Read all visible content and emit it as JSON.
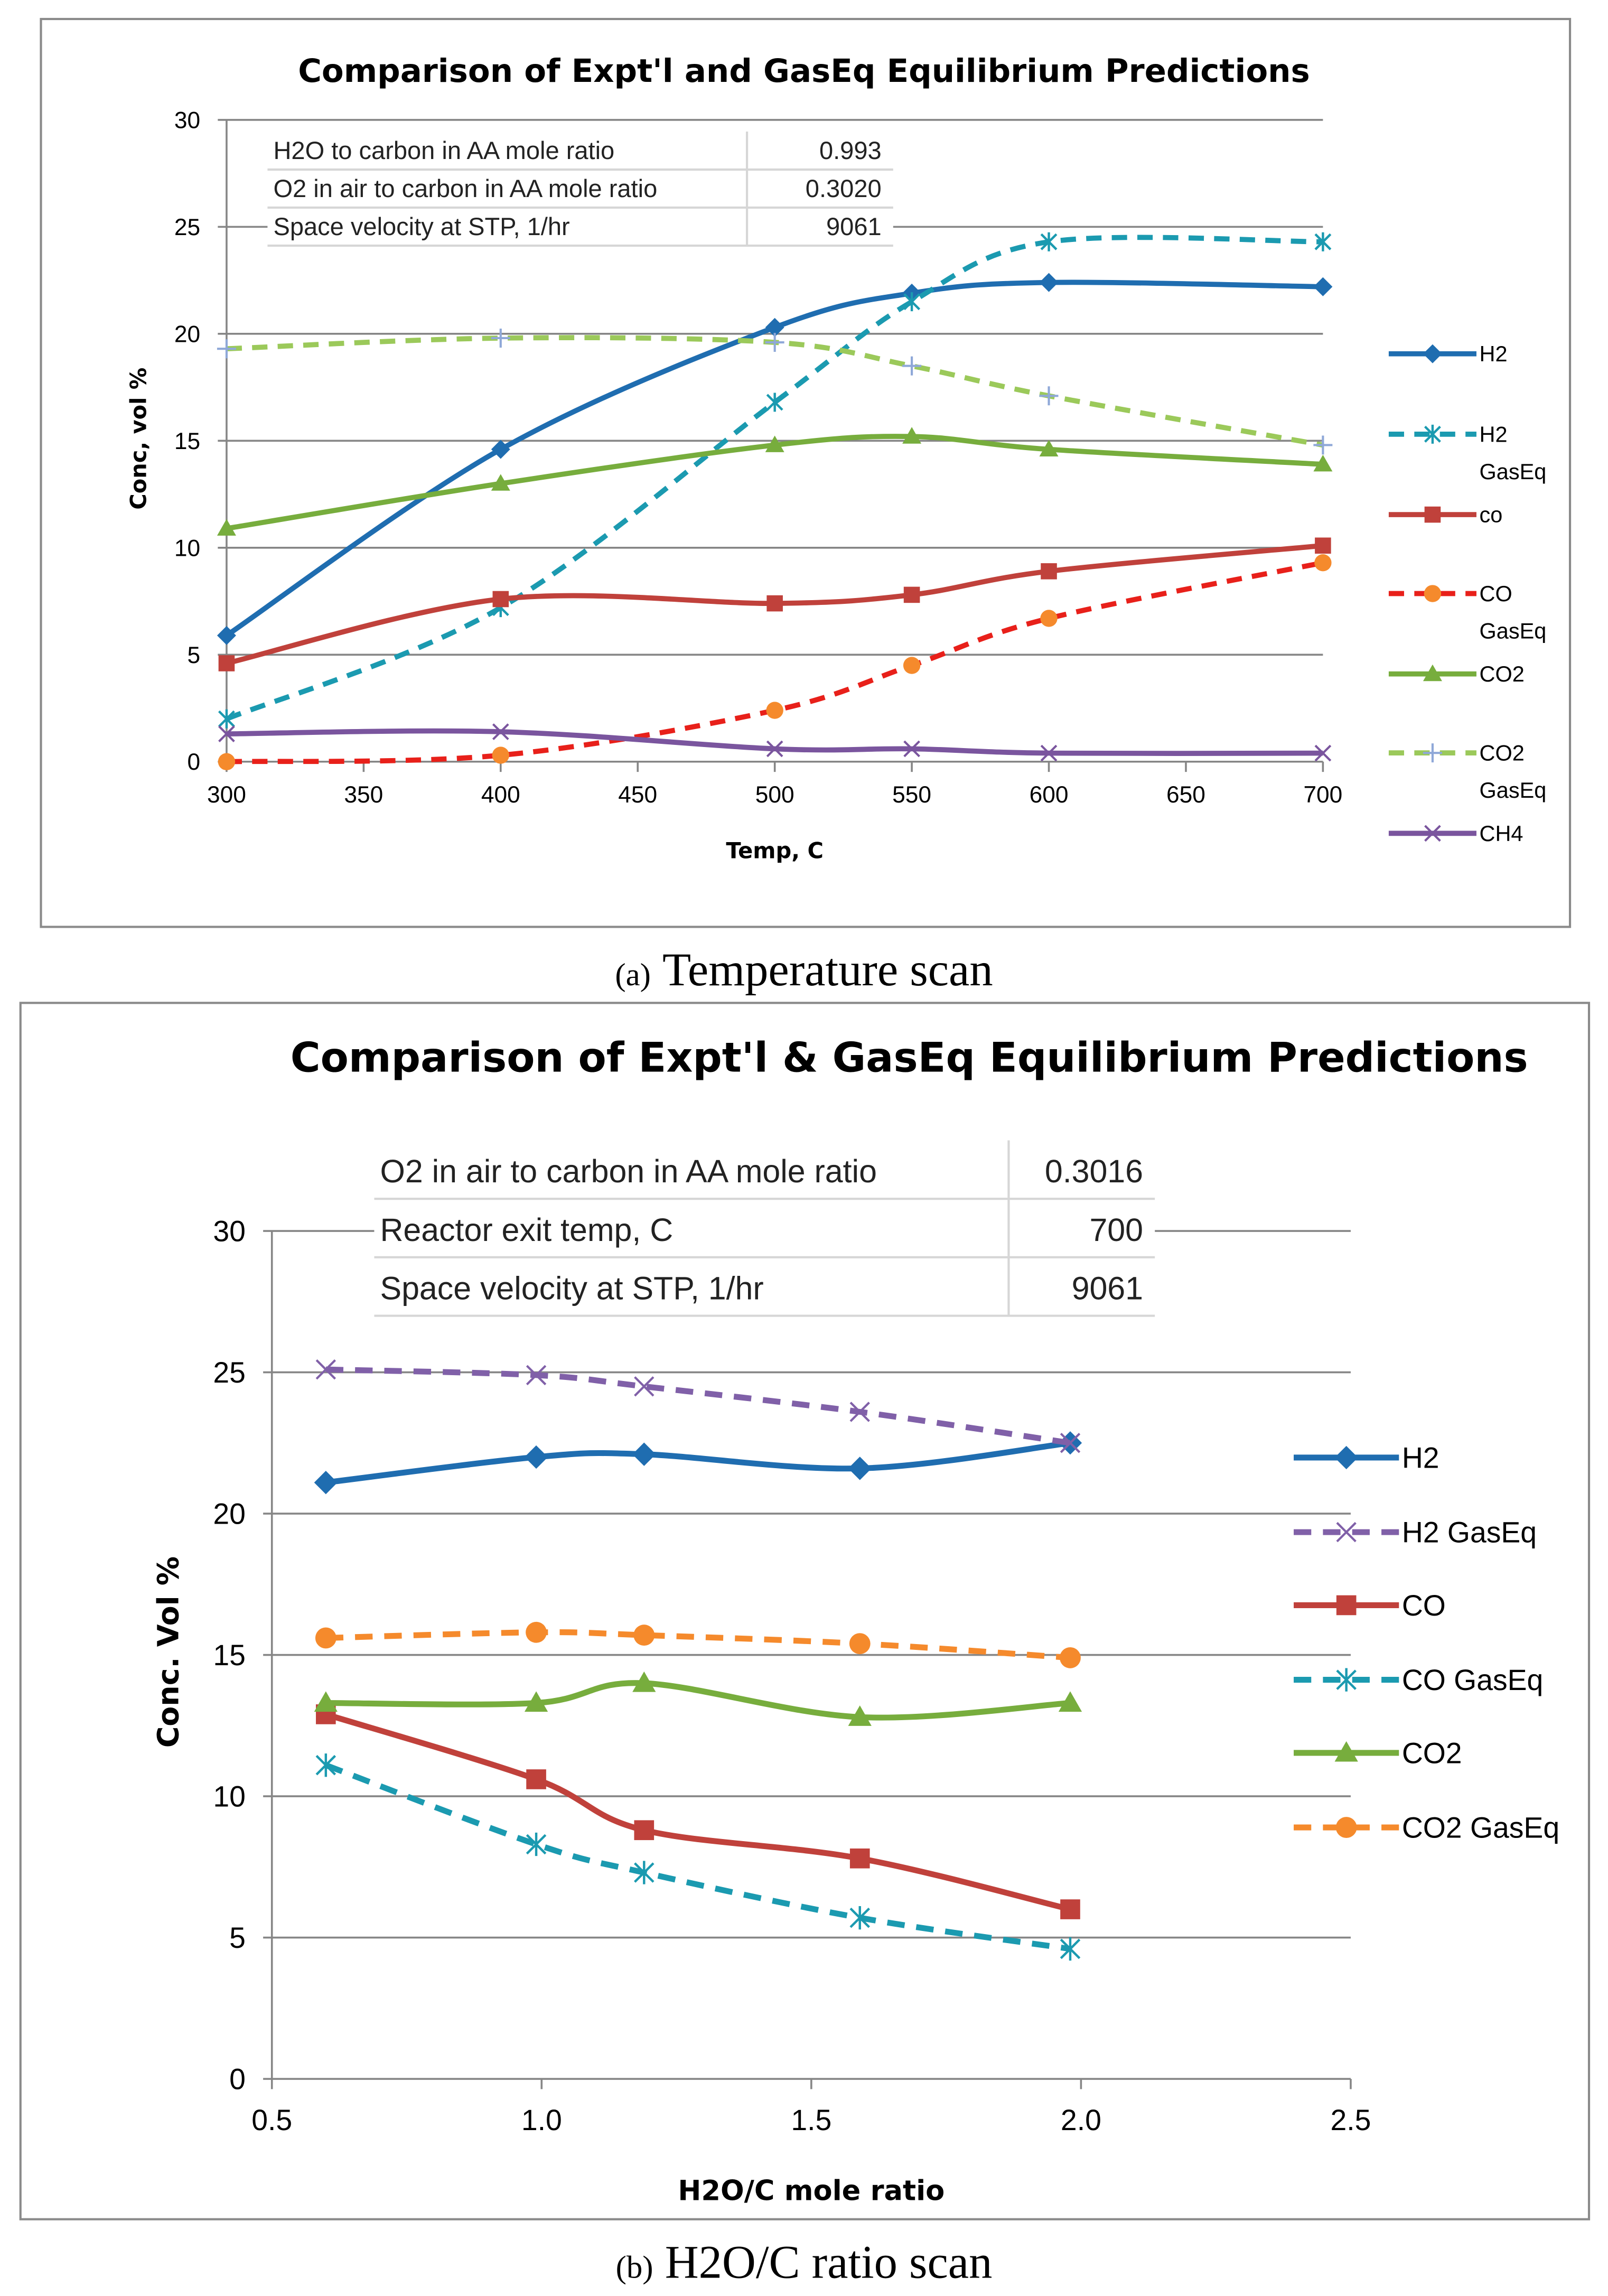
{
  "captions": [
    {
      "label": "(a)",
      "text": "Temperature scan"
    },
    {
      "label": "(b)",
      "text": "H2O/C ratio scan"
    }
  ],
  "chart_data": [
    {
      "type": "line",
      "title": "Comparison of Expt'l and GasEq Equilibrium Predictions",
      "xlabel": "Temp, C",
      "ylabel": "Conc, vol %",
      "xlim": [
        300,
        700
      ],
      "ylim": [
        0,
        30
      ],
      "xticks": [
        "300",
        "350",
        "400",
        "450",
        "500",
        "550",
        "600",
        "650",
        "700"
      ],
      "xtick_values": [
        300,
        350,
        400,
        450,
        500,
        550,
        600,
        650,
        700
      ],
      "yticks": [
        "0",
        "5",
        "10",
        "15",
        "20",
        "25",
        "30"
      ],
      "ytick_values": [
        0,
        5,
        10,
        15,
        20,
        25,
        30
      ],
      "grid": true,
      "legend_placement": "right",
      "x": [
        300,
        400,
        500,
        550,
        600,
        700
      ],
      "series": [
        {
          "name": "H2",
          "values": [
            5.9,
            14.6,
            20.3,
            21.9,
            22.4,
            22.2
          ],
          "color": "#1f6db0",
          "dash": false,
          "marker": "diamond",
          "marker_color": "#1f6db0"
        },
        {
          "name": "H2 GasEq",
          "values": [
            2.0,
            7.2,
            16.8,
            21.5,
            24.3,
            24.3
          ],
          "color": "#1b9ab0",
          "dash": true,
          "marker": "asterisk",
          "marker_color": "#1b9ab0"
        },
        {
          "name": "co",
          "values": [
            4.6,
            7.6,
            7.4,
            7.8,
            8.9,
            10.1
          ],
          "color": "#c0413b",
          "dash": false,
          "marker": "square",
          "marker_color": "#c0413b"
        },
        {
          "name": "CO GasEq",
          "values": [
            0.0,
            0.3,
            2.4,
            4.5,
            6.7,
            9.3
          ],
          "color": "#e8201a",
          "dash": true,
          "marker": "circle",
          "marker_color": "#f58a2c"
        },
        {
          "name": "CO2",
          "values": [
            10.9,
            13.0,
            14.8,
            15.2,
            14.6,
            13.9
          ],
          "color": "#77ad3d",
          "dash": false,
          "marker": "triangle",
          "marker_color": "#77ad3d"
        },
        {
          "name": "CO2 GasEq",
          "values": [
            19.3,
            19.8,
            19.6,
            18.5,
            17.1,
            14.8
          ],
          "color": "#9bc95a",
          "dash": true,
          "marker": "plus",
          "marker_color": "#8fa8d8"
        },
        {
          "name": "CH4",
          "values": [
            1.3,
            1.4,
            0.6,
            0.6,
            0.4,
            0.4
          ],
          "color": "#7a559e",
          "dash": false,
          "marker": "x",
          "marker_color": "#7a559e"
        }
      ],
      "table": [
        [
          "H2O to carbon in AA mole ratio",
          "0.993"
        ],
        [
          "O2 in air to carbon in AA mole ratio",
          "0.3020"
        ],
        [
          "Space velocity at STP, 1/hr",
          "9061"
        ]
      ]
    },
    {
      "type": "line",
      "title": "Comparison of Expt'l & GasEq Equilibrium Predictions",
      "xlabel": "H2O/C mole ratio",
      "ylabel": "Conc. Vol %",
      "xlim": [
        0.5,
        2.5
      ],
      "ylim": [
        0,
        30
      ],
      "xticks": [
        "0.5",
        "1.0",
        "1.5",
        "2.0",
        "2.5"
      ],
      "xtick_values": [
        0.5,
        1.0,
        1.5,
        2.0,
        2.5
      ],
      "yticks": [
        "0",
        "5",
        "10",
        "15",
        "20",
        "25",
        "30"
      ],
      "ytick_values": [
        0,
        5,
        10,
        15,
        20,
        25,
        30
      ],
      "grid": true,
      "legend_placement": "right",
      "x": [
        0.6,
        0.99,
        1.19,
        1.59,
        1.98
      ],
      "series": [
        {
          "name": "H2",
          "values": [
            21.1,
            22.0,
            22.1,
            21.6,
            22.5
          ],
          "color": "#1f6db0",
          "dash": false,
          "marker": "diamond",
          "marker_color": "#1f6db0"
        },
        {
          "name": "H2 GasEq",
          "values": [
            25.1,
            24.9,
            24.5,
            23.6,
            22.5
          ],
          "color": "#8060a8",
          "dash": true,
          "marker": "x",
          "marker_color": "#8060a8"
        },
        {
          "name": "CO",
          "values": [
            12.9,
            10.6,
            8.8,
            7.8,
            6.0
          ],
          "color": "#c0413b",
          "dash": false,
          "marker": "square",
          "marker_color": "#c0413b"
        },
        {
          "name": "CO GasEq",
          "values": [
            11.1,
            8.3,
            7.3,
            5.7,
            4.6
          ],
          "color": "#1b9ab0",
          "dash": true,
          "marker": "asterisk",
          "marker_color": "#1b9ab0"
        },
        {
          "name": "CO2",
          "values": [
            13.3,
            13.3,
            14.0,
            12.8,
            13.3
          ],
          "color": "#77ad3d",
          "dash": false,
          "marker": "triangle",
          "marker_color": "#77ad3d"
        },
        {
          "name": "CO2 GasEq",
          "values": [
            15.6,
            15.8,
            15.7,
            15.4,
            14.9
          ],
          "color": "#f58a2c",
          "dash": true,
          "marker": "circle",
          "marker_color": "#f58a2c"
        }
      ],
      "table": [
        [
          "O2 in air to carbon in AA mole ratio",
          "0.3016"
        ],
        [
          "Reactor exit temp, C",
          "700"
        ],
        [
          "Space velocity at STP, 1/hr",
          "9061"
        ]
      ]
    }
  ]
}
